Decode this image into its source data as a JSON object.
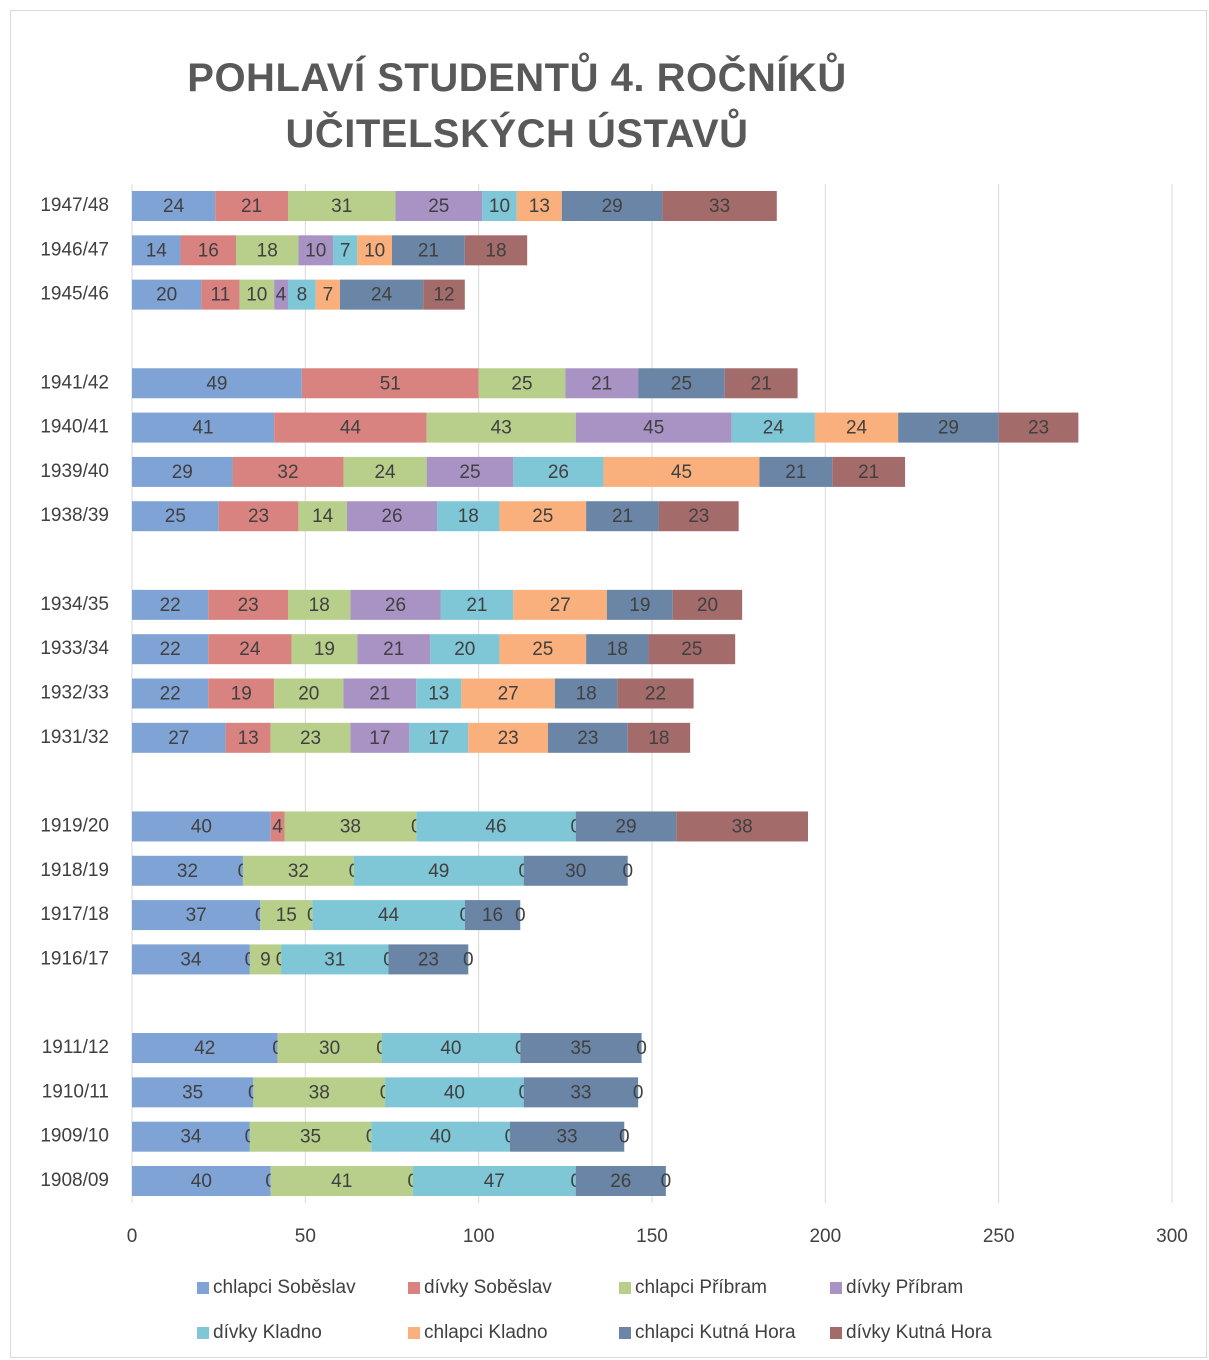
{
  "chart_data": {
    "type": "stacked-bar",
    "orientation": "horizontal",
    "title": "POHLAVÍ STUDENTŮ 4. ROČNÍKŮ UČITELSKÝCH ÚSTAVŮ",
    "categories": [
      "1947/48",
      "1946/47",
      "1945/46",
      null,
      "1941/42",
      "1940/41",
      "1939/40",
      "1938/39",
      null,
      "1934/35",
      "1933/34",
      "1932/33",
      "1931/32",
      null,
      "1919/20",
      "1918/19",
      "1917/18",
      "1916/17",
      null,
      "1911/12",
      "1910/11",
      "1909/10",
      "1908/09"
    ],
    "series": [
      {
        "name": "chlapci Soběslav",
        "color": "#7fa3d5",
        "values": [
          24,
          14,
          20,
          null,
          49,
          41,
          29,
          25,
          null,
          22,
          22,
          22,
          27,
          null,
          40,
          32,
          37,
          34,
          null,
          42,
          35,
          34,
          40
        ]
      },
      {
        "name": "dívky Soběslav",
        "color": "#d98381",
        "values": [
          21,
          16,
          11,
          null,
          51,
          44,
          32,
          23,
          null,
          23,
          24,
          19,
          13,
          null,
          4,
          0,
          0,
          0,
          null,
          0,
          0,
          0,
          0
        ]
      },
      {
        "name": "chlapci Příbram",
        "color": "#b7cf8b",
        "values": [
          31,
          18,
          10,
          null,
          25,
          43,
          24,
          14,
          null,
          18,
          19,
          20,
          23,
          null,
          38,
          32,
          15,
          9,
          null,
          30,
          38,
          35,
          41
        ]
      },
      {
        "name": "dívky Příbram",
        "color": "#a893c4",
        "values": [
          25,
          10,
          4,
          null,
          21,
          45,
          25,
          26,
          null,
          26,
          21,
          21,
          17,
          null,
          0,
          0,
          0,
          0,
          null,
          0,
          0,
          0,
          0
        ]
      },
      {
        "name": "dívky Kladno",
        "color": "#7fc6d6",
        "values": [
          10,
          7,
          8,
          null,
          null,
          24,
          26,
          18,
          null,
          21,
          20,
          13,
          17,
          null,
          46,
          49,
          44,
          31,
          null,
          40,
          40,
          40,
          47
        ]
      },
      {
        "name": "chlapci Kladno",
        "color": "#f9b07c",
        "values": [
          13,
          10,
          7,
          null,
          null,
          24,
          45,
          25,
          null,
          27,
          25,
          27,
          23,
          null,
          0,
          0,
          0,
          0,
          null,
          0,
          0,
          0,
          0
        ]
      },
      {
        "name": "chlapci Kutná Hora",
        "color": "#6a85a5",
        "values": [
          29,
          21,
          24,
          null,
          25,
          29,
          21,
          21,
          null,
          19,
          18,
          18,
          23,
          null,
          29,
          30,
          16,
          23,
          null,
          35,
          33,
          33,
          26
        ]
      },
      {
        "name": "dívky Kutná Hora",
        "color": "#a46b6b",
        "values": [
          33,
          18,
          12,
          null,
          21,
          23,
          21,
          23,
          null,
          20,
          25,
          22,
          18,
          null,
          38,
          0,
          0,
          0,
          null,
          0,
          0,
          0,
          0
        ]
      }
    ],
    "xlim": [
      0,
      300
    ],
    "xticks": [
      0,
      50,
      100,
      150,
      200,
      250,
      300
    ],
    "grid": true,
    "legend": "bottom"
  }
}
